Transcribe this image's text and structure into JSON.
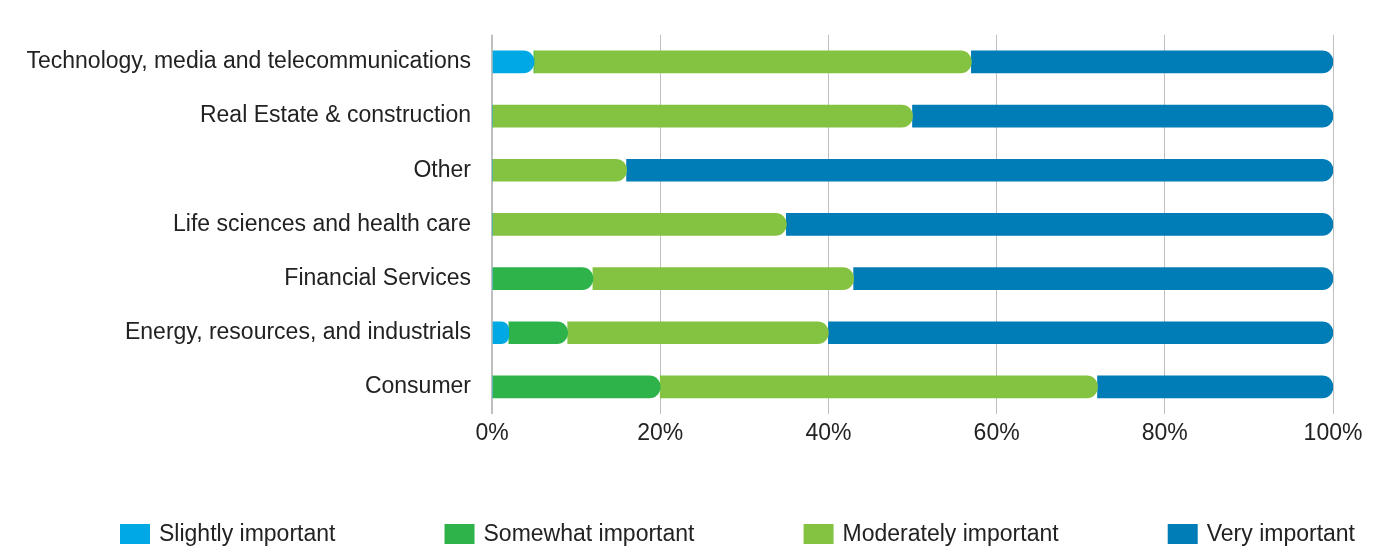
{
  "chart_data": {
    "type": "bar",
    "orientation": "horizontal",
    "stacked": true,
    "categories": [
      "Technology, media and telecommunications",
      "Real Estate & construction",
      "Other",
      "Life sciences and health care",
      "Financial Services",
      "Energy, resources, and industrials",
      "Consumer"
    ],
    "series": [
      {
        "name": "Slightly important",
        "color": "#00a9e3",
        "values": [
          5,
          0,
          0,
          0,
          0,
          2,
          0
        ]
      },
      {
        "name": "Somewhat important",
        "color": "#2db34a",
        "values": [
          0,
          0,
          0,
          0,
          12,
          7,
          20
        ]
      },
      {
        "name": "Moderately important",
        "color": "#84c341",
        "values": [
          52,
          50,
          16,
          35,
          31,
          31,
          52
        ]
      },
      {
        "name": "Very important",
        "color": "#007cb6",
        "values": [
          43,
          50,
          84,
          65,
          57,
          60,
          28
        ]
      }
    ],
    "xlim": [
      0,
      100
    ],
    "xticks": [
      {
        "value": 0,
        "label": "0%"
      },
      {
        "value": 20,
        "label": "20%"
      },
      {
        "value": 40,
        "label": "40%"
      },
      {
        "value": 60,
        "label": "60%"
      },
      {
        "value": 80,
        "label": "80%"
      },
      {
        "value": 100,
        "label": "100%"
      }
    ],
    "grid": "x",
    "legend": "bottom"
  }
}
